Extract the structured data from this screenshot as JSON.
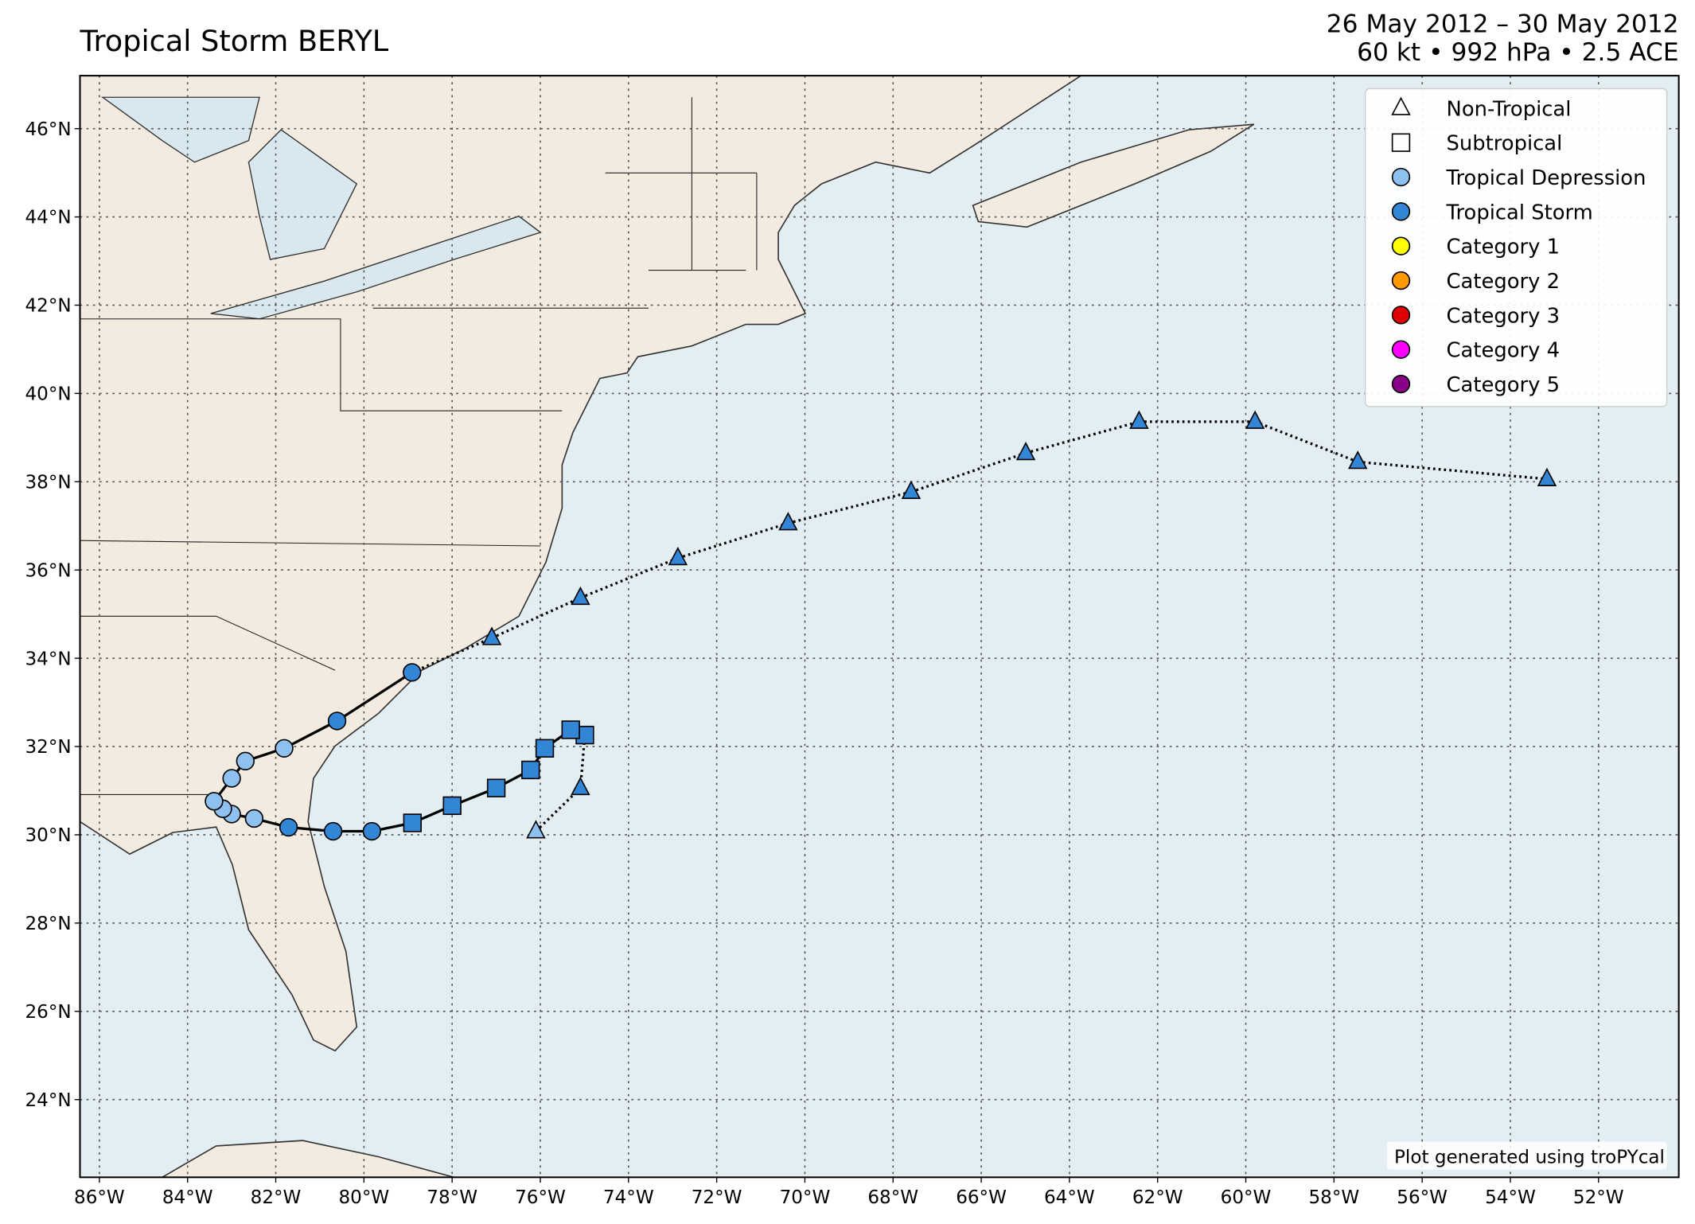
{
  "chart_data": {
    "type": "track",
    "title": "Tropical Storm BERYL",
    "date_range": "26 May 2012 – 30 May 2012",
    "stats": "60 kt • 992 hPa • 2.5 ACE",
    "credit": "Plot generated using troPYcal",
    "xlim": [
      -86.44,
      -50.18
    ],
    "ylim": [
      22.24,
      47.2
    ],
    "xticks": [
      {
        "value": -86,
        "label": "86°W"
      },
      {
        "value": -84,
        "label": "84°W"
      },
      {
        "value": -82,
        "label": "82°W"
      },
      {
        "value": -80,
        "label": "80°W"
      },
      {
        "value": -78,
        "label": "78°W"
      },
      {
        "value": -76,
        "label": "76°W"
      },
      {
        "value": -74,
        "label": "74°W"
      },
      {
        "value": -72,
        "label": "72°W"
      },
      {
        "value": -70,
        "label": "70°W"
      },
      {
        "value": -68,
        "label": "68°W"
      },
      {
        "value": -66,
        "label": "66°W"
      },
      {
        "value": -64,
        "label": "64°W"
      },
      {
        "value": -62,
        "label": "62°W"
      },
      {
        "value": -60,
        "label": "60°W"
      },
      {
        "value": -58,
        "label": "58°W"
      },
      {
        "value": -56,
        "label": "56°W"
      },
      {
        "value": -54,
        "label": "54°W"
      },
      {
        "value": -52,
        "label": "52°W"
      }
    ],
    "yticks": [
      {
        "value": 24,
        "label": "24°N"
      },
      {
        "value": 26,
        "label": "26°N"
      },
      {
        "value": 28,
        "label": "28°N"
      },
      {
        "value": 30,
        "label": "30°N"
      },
      {
        "value": 32,
        "label": "32°N"
      },
      {
        "value": 34,
        "label": "34°N"
      },
      {
        "value": 36,
        "label": "36°N"
      },
      {
        "value": 38,
        "label": "38°N"
      },
      {
        "value": 40,
        "label": "40°N"
      },
      {
        "value": 42,
        "label": "42°N"
      },
      {
        "value": 44,
        "label": "44°N"
      },
      {
        "value": 46,
        "label": "46°N"
      }
    ],
    "grid": true,
    "legend_position": "upper right",
    "legend": [
      {
        "name": "Non-Tropical",
        "marker": "triangle",
        "color": "none"
      },
      {
        "name": "Subtropical",
        "marker": "square",
        "color": "none"
      },
      {
        "name": "Tropical Depression",
        "marker": "circle",
        "color": "#8fc1f0"
      },
      {
        "name": "Tropical Storm",
        "marker": "circle",
        "color": "#3385d6"
      },
      {
        "name": "Category 1",
        "marker": "circle",
        "color": "#ffff00"
      },
      {
        "name": "Category 2",
        "marker": "circle",
        "color": "#ff9900"
      },
      {
        "name": "Category 3",
        "marker": "circle",
        "color": "#dd0000"
      },
      {
        "name": "Category 4",
        "marker": "circle",
        "color": "#ff00ff"
      },
      {
        "name": "Category 5",
        "marker": "circle",
        "color": "#8b0088"
      }
    ],
    "track": {
      "lon": [
        -76.1,
        -75.09,
        -74.99,
        -75.31,
        -75.9,
        -76.22,
        -77.0,
        -78.0,
        -78.9,
        -79.82,
        -80.7,
        -81.71,
        -82.49,
        -83.0,
        -83.2,
        -83.4,
        -83.0,
        -82.69,
        -81.81,
        -80.61,
        -78.91,
        -77.1,
        -75.09,
        -72.88,
        -70.38,
        -67.59,
        -64.99,
        -62.42,
        -59.79,
        -57.46,
        -53.17
      ],
      "lat": [
        30.08,
        31.06,
        32.26,
        32.38,
        31.96,
        31.47,
        31.06,
        30.66,
        30.27,
        30.08,
        30.08,
        30.17,
        30.37,
        30.47,
        30.59,
        30.76,
        31.28,
        31.67,
        31.96,
        32.58,
        33.68,
        34.46,
        35.37,
        36.27,
        37.06,
        37.77,
        38.65,
        39.36,
        39.36,
        38.45,
        38.06
      ],
      "marker": [
        "triangle",
        "triangle",
        "square",
        "square",
        "square",
        "square",
        "square",
        "square",
        "square",
        "circle",
        "circle",
        "circle",
        "circle",
        "circle",
        "circle",
        "circle",
        "circle",
        "circle",
        "circle",
        "circle",
        "circle",
        "triangle",
        "triangle",
        "triangle",
        "triangle",
        "triangle",
        "triangle",
        "triangle",
        "triangle",
        "triangle",
        "triangle"
      ],
      "color": [
        "#8fc1f0",
        "#3385d6",
        "#3385d6",
        "#3385d6",
        "#3385d6",
        "#3385d6",
        "#3385d6",
        "#3385d6",
        "#3385d6",
        "#3385d6",
        "#3385d6",
        "#3385d6",
        "#8fc1f0",
        "#8fc1f0",
        "#8fc1f0",
        "#8fc1f0",
        "#8fc1f0",
        "#8fc1f0",
        "#8fc1f0",
        "#3385d6",
        "#3385d6",
        "#3385d6",
        "#3385d6",
        "#3385d6",
        "#3385d6",
        "#3385d6",
        "#3385d6",
        "#3385d6",
        "#3385d6",
        "#3385d6",
        "#3385d6"
      ]
    }
  }
}
